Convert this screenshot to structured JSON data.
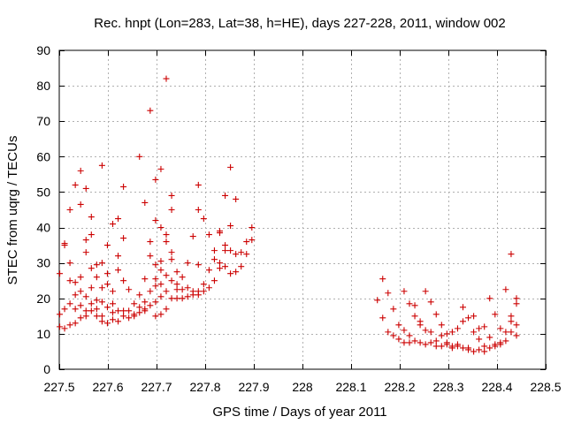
{
  "chart_data": {
    "type": "scatter",
    "title": "Rec. hnpt (Lon=283, Lat=38, h=HE), days 227-228, 2011, window 002",
    "xlabel": "GPS time / Days of year 2011",
    "ylabel": "STEC from uqrg / TECUs",
    "xlim": [
      227.5,
      228.5
    ],
    "ylim": [
      0,
      90
    ],
    "xticks": [
      "227.5",
      "227.6",
      "227.7",
      "227.8",
      "227.9",
      "228",
      "228.1",
      "228.2",
      "228.3",
      "228.4",
      "228.5"
    ],
    "yticks": [
      "0",
      "10",
      "20",
      "30",
      "40",
      "50",
      "60",
      "70",
      "80",
      "90"
    ],
    "grid": true,
    "marker": "plus",
    "colors": {
      "series": "#cc0000",
      "grid": "#b0b0b0",
      "axis": "#000000"
    },
    "series": [
      {
        "points": [
          [
            227.501,
            27.0
          ],
          [
            227.501,
            15.5
          ],
          [
            227.501,
            12.0
          ],
          [
            227.511,
            35.5
          ],
          [
            227.511,
            35.0
          ],
          [
            227.511,
            17.0
          ],
          [
            227.511,
            11.5
          ],
          [
            227.522,
            45.0
          ],
          [
            227.522,
            30.0
          ],
          [
            227.522,
            25.0
          ],
          [
            227.522,
            18.5
          ],
          [
            227.522,
            12.5
          ],
          [
            227.533,
            52.0
          ],
          [
            227.533,
            24.5
          ],
          [
            227.533,
            21.0
          ],
          [
            227.533,
            17.0
          ],
          [
            227.533,
            13.0
          ],
          [
            227.544,
            56.0
          ],
          [
            227.544,
            46.5
          ],
          [
            227.544,
            26.0
          ],
          [
            227.544,
            22.0
          ],
          [
            227.544,
            18.0
          ],
          [
            227.544,
            14.5
          ],
          [
            227.555,
            51.0
          ],
          [
            227.555,
            36.5
          ],
          [
            227.555,
            33.0
          ],
          [
            227.555,
            20.5
          ],
          [
            227.555,
            16.5
          ],
          [
            227.555,
            15.0
          ],
          [
            227.566,
            43.0
          ],
          [
            227.566,
            38.0
          ],
          [
            227.566,
            28.5
          ],
          [
            227.566,
            23.0
          ],
          [
            227.566,
            18.5
          ],
          [
            227.566,
            16.5
          ],
          [
            227.577,
            29.5
          ],
          [
            227.577,
            26.0
          ],
          [
            227.577,
            19.5
          ],
          [
            227.577,
            15.0
          ],
          [
            227.577,
            17.0
          ],
          [
            227.588,
            57.5
          ],
          [
            227.588,
            30.0
          ],
          [
            227.588,
            23.0
          ],
          [
            227.588,
            19.0
          ],
          [
            227.588,
            15.0
          ],
          [
            227.588,
            13.5
          ],
          [
            227.599,
            35.0
          ],
          [
            227.599,
            27.0
          ],
          [
            227.599,
            24.0
          ],
          [
            227.599,
            17.5
          ],
          [
            227.599,
            13.0
          ],
          [
            227.61,
            41.0
          ],
          [
            227.61,
            22.0
          ],
          [
            227.61,
            18.5
          ],
          [
            227.61,
            16.0
          ],
          [
            227.61,
            14.0
          ],
          [
            227.621,
            42.5
          ],
          [
            227.621,
            32.0
          ],
          [
            227.621,
            28.0
          ],
          [
            227.621,
            16.5
          ],
          [
            227.621,
            13.5
          ],
          [
            227.632,
            51.5
          ],
          [
            227.632,
            37.0
          ],
          [
            227.632,
            25.0
          ],
          [
            227.632,
            15.0
          ],
          [
            227.632,
            16.5
          ],
          [
            227.643,
            22.5
          ],
          [
            227.643,
            16.5
          ],
          [
            227.643,
            14.5
          ],
          [
            227.654,
            18.5
          ],
          [
            227.654,
            15.5
          ],
          [
            227.654,
            15.0
          ],
          [
            227.665,
            60.0
          ],
          [
            227.665,
            21.0
          ],
          [
            227.665,
            17.5
          ],
          [
            227.665,
            16.0
          ],
          [
            227.676,
            47.0
          ],
          [
            227.676,
            25.5
          ],
          [
            227.676,
            19.0
          ],
          [
            227.676,
            17.0
          ],
          [
            227.676,
            16.5
          ],
          [
            227.687,
            73.0
          ],
          [
            227.687,
            36.0
          ],
          [
            227.687,
            32.0
          ],
          [
            227.687,
            22.0
          ],
          [
            227.687,
            18.0
          ],
          [
            227.698,
            53.5
          ],
          [
            227.698,
            42.0
          ],
          [
            227.698,
            29.5
          ],
          [
            227.698,
            25.5
          ],
          [
            227.698,
            23.5
          ],
          [
            227.698,
            19.0
          ],
          [
            227.698,
            15.0
          ],
          [
            227.709,
            56.5
          ],
          [
            227.709,
            40.0
          ],
          [
            227.709,
            30.5
          ],
          [
            227.709,
            28.0
          ],
          [
            227.709,
            24.0
          ],
          [
            227.709,
            20.5
          ],
          [
            227.709,
            15.5
          ],
          [
            227.72,
            82.0
          ],
          [
            227.72,
            38.0
          ],
          [
            227.72,
            36.0
          ],
          [
            227.72,
            26.5
          ],
          [
            227.72,
            22.0
          ],
          [
            227.72,
            17.0
          ],
          [
            227.731,
            49.0
          ],
          [
            227.731,
            45.0
          ],
          [
            227.731,
            33.0
          ],
          [
            227.731,
            31.0
          ],
          [
            227.731,
            25.0
          ],
          [
            227.731,
            20.0
          ],
          [
            227.742,
            27.5
          ],
          [
            227.742,
            24.0
          ],
          [
            227.742,
            22.5
          ],
          [
            227.742,
            20.0
          ],
          [
            227.753,
            26.0
          ],
          [
            227.753,
            22.5
          ],
          [
            227.753,
            20.0
          ],
          [
            227.764,
            30.0
          ],
          [
            227.764,
            23.0
          ],
          [
            227.764,
            20.5
          ],
          [
            227.775,
            37.5
          ],
          [
            227.775,
            22.0
          ],
          [
            227.775,
            21.0
          ],
          [
            227.786,
            52.0
          ],
          [
            227.786,
            45.0
          ],
          [
            227.786,
            29.5
          ],
          [
            227.786,
            22.0
          ],
          [
            227.786,
            21.0
          ],
          [
            227.797,
            42.5
          ],
          [
            227.797,
            24.0
          ],
          [
            227.797,
            22.0
          ],
          [
            227.808,
            38.0
          ],
          [
            227.808,
            28.0
          ],
          [
            227.808,
            23.0
          ],
          [
            227.819,
            33.5
          ],
          [
            227.819,
            31.0
          ],
          [
            227.819,
            25.0
          ],
          [
            227.83,
            39.0
          ],
          [
            227.83,
            38.5
          ],
          [
            227.83,
            30.0
          ],
          [
            227.83,
            28.5
          ],
          [
            227.841,
            49.0
          ],
          [
            227.841,
            35.0
          ],
          [
            227.841,
            33.5
          ],
          [
            227.841,
            29.0
          ],
          [
            227.852,
            57.0
          ],
          [
            227.852,
            40.5
          ],
          [
            227.852,
            33.5
          ],
          [
            227.852,
            27.0
          ],
          [
            227.863,
            48.0
          ],
          [
            227.863,
            32.5
          ],
          [
            227.863,
            27.5
          ],
          [
            227.874,
            33.0
          ],
          [
            227.874,
            29.0
          ],
          [
            227.885,
            36.0
          ],
          [
            227.885,
            32.5
          ],
          [
            227.896,
            40.0
          ],
          [
            227.896,
            36.5
          ],
          [
            228.154,
            19.5
          ],
          [
            228.165,
            25.5
          ],
          [
            228.165,
            14.5
          ],
          [
            228.176,
            21.5
          ],
          [
            228.176,
            10.5
          ],
          [
            228.187,
            17.0
          ],
          [
            228.187,
            9.5
          ],
          [
            228.198,
            12.5
          ],
          [
            228.198,
            8.5
          ],
          [
            228.209,
            22.0
          ],
          [
            228.209,
            11.0
          ],
          [
            228.209,
            7.5
          ],
          [
            228.22,
            18.5
          ],
          [
            228.22,
            9.5
          ],
          [
            228.22,
            7.5
          ],
          [
            228.231,
            18.0
          ],
          [
            228.231,
            15.0
          ],
          [
            228.231,
            8.0
          ],
          [
            228.242,
            13.5
          ],
          [
            228.242,
            12.5
          ],
          [
            228.242,
            7.5
          ],
          [
            228.253,
            22.0
          ],
          [
            228.253,
            11.0
          ],
          [
            228.253,
            7.0
          ],
          [
            228.264,
            19.0
          ],
          [
            228.264,
            10.5
          ],
          [
            228.264,
            7.5
          ],
          [
            228.275,
            15.5
          ],
          [
            228.275,
            8.0
          ],
          [
            228.275,
            6.5
          ],
          [
            228.286,
            12.5
          ],
          [
            228.286,
            9.5
          ],
          [
            228.286,
            6.5
          ],
          [
            228.297,
            10.0
          ],
          [
            228.297,
            7.5
          ],
          [
            228.297,
            7.0
          ],
          [
            228.308,
            10.5
          ],
          [
            228.308,
            6.5
          ],
          [
            228.308,
            6.0
          ],
          [
            228.319,
            11.5
          ],
          [
            228.319,
            7.0
          ],
          [
            228.319,
            6.5
          ],
          [
            228.33,
            17.5
          ],
          [
            228.33,
            13.5
          ],
          [
            228.33,
            6.0
          ],
          [
            228.341,
            14.5
          ],
          [
            228.341,
            6.0
          ],
          [
            228.341,
            5.5
          ],
          [
            228.352,
            15.0
          ],
          [
            228.352,
            10.5
          ],
          [
            228.352,
            5.0
          ],
          [
            228.363,
            11.5
          ],
          [
            228.363,
            8.5
          ],
          [
            228.363,
            5.5
          ],
          [
            228.374,
            12.0
          ],
          [
            228.374,
            6.5
          ],
          [
            228.374,
            5.0
          ],
          [
            228.385,
            20.0
          ],
          [
            228.385,
            9.0
          ],
          [
            228.385,
            6.0
          ],
          [
            228.396,
            15.5
          ],
          [
            228.396,
            7.0
          ],
          [
            228.396,
            6.5
          ],
          [
            228.407,
            11.5
          ],
          [
            228.407,
            7.5
          ],
          [
            228.407,
            7.0
          ],
          [
            228.418,
            22.5
          ],
          [
            228.418,
            10.5
          ],
          [
            228.418,
            8.0
          ],
          [
            228.429,
            32.5
          ],
          [
            228.429,
            15.0
          ],
          [
            228.429,
            13.5
          ],
          [
            228.429,
            10.5
          ],
          [
            228.44,
            20.0
          ],
          [
            228.44,
            18.5
          ],
          [
            228.44,
            12.5
          ],
          [
            228.44,
            9.5
          ]
        ]
      }
    ]
  }
}
